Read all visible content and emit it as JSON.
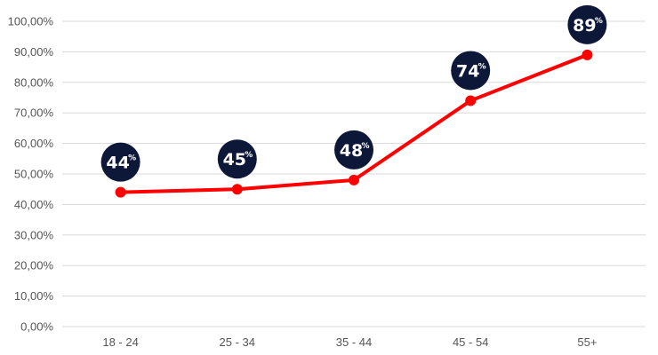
{
  "chart_data": {
    "type": "line",
    "categories": [
      "18 - 24",
      "25 - 34",
      "35 - 44",
      "45 - 54",
      "55+"
    ],
    "values": [
      44,
      45,
      48,
      74,
      89
    ],
    "data_labels": [
      "44",
      "45",
      "48",
      "74",
      "89"
    ],
    "data_label_suffix": "%",
    "y_ticks": [
      "0,00%",
      "10,00%",
      "20,00%",
      "30,00%",
      "40,00%",
      "50,00%",
      "60,00%",
      "70,00%",
      "80,00%",
      "90,00%",
      "100,00%"
    ],
    "ylim": [
      0,
      100
    ],
    "grid": true,
    "legend": "none",
    "colors": {
      "line": "#ff0000",
      "marker": "#ff0000",
      "label_bubble": "#0d1738",
      "grid": "#d9d9d9",
      "tick_text": "#555555"
    }
  }
}
